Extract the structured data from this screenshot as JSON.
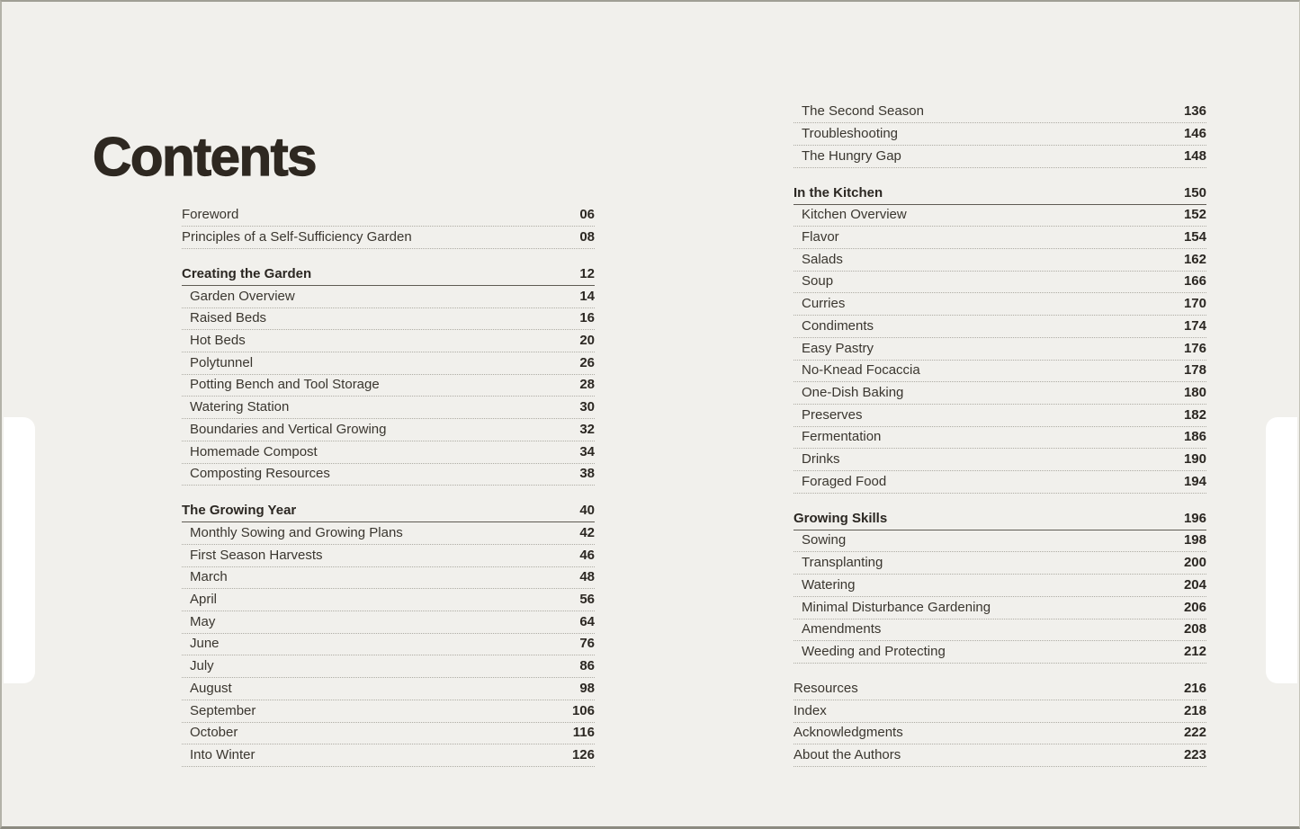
{
  "page": {
    "title": "Contents"
  },
  "colors": {
    "background": "#f1f0ec",
    "text": "#3a362f",
    "text_dark": "#2b2722",
    "rule_light": "#aeaca4",
    "rule_dark": "#5f5b53",
    "frame": "#a09f95",
    "tab": "#ffffff",
    "title": "#2e2821"
  },
  "toc": {
    "left_column": [
      {
        "t": "item",
        "label": "Foreword",
        "page": "06"
      },
      {
        "t": "item",
        "label": "Principles of a Self-Sufficiency Garden",
        "page": "08"
      },
      {
        "t": "section",
        "label": "Creating the Garden",
        "page": "12",
        "gap": true
      },
      {
        "t": "sub",
        "label": "Garden Overview",
        "page": "14"
      },
      {
        "t": "sub",
        "label": "Raised Beds",
        "page": "16"
      },
      {
        "t": "sub",
        "label": "Hot Beds",
        "page": "20"
      },
      {
        "t": "sub",
        "label": "Polytunnel",
        "page": "26"
      },
      {
        "t": "sub",
        "label": "Potting Bench and Tool Storage",
        "page": "28"
      },
      {
        "t": "sub",
        "label": "Watering Station",
        "page": "30"
      },
      {
        "t": "sub",
        "label": "Boundaries and Vertical Growing",
        "page": "32"
      },
      {
        "t": "sub",
        "label": "Homemade Compost",
        "page": "34"
      },
      {
        "t": "sub",
        "label": "Composting Resources",
        "page": "38"
      },
      {
        "t": "section",
        "label": "The Growing Year",
        "page": "40",
        "gap": true
      },
      {
        "t": "sub",
        "label": "Monthly Sowing and Growing Plans",
        "page": "42"
      },
      {
        "t": "sub",
        "label": "First Season Harvests",
        "page": "46"
      },
      {
        "t": "sub",
        "label": "March",
        "page": "48"
      },
      {
        "t": "sub",
        "label": "April",
        "page": "56"
      },
      {
        "t": "sub",
        "label": "May",
        "page": "64"
      },
      {
        "t": "sub",
        "label": "June",
        "page": "76"
      },
      {
        "t": "sub",
        "label": "July",
        "page": "86"
      },
      {
        "t": "sub",
        "label": "August",
        "page": "98"
      },
      {
        "t": "sub",
        "label": "September",
        "page": "106"
      },
      {
        "t": "sub",
        "label": "October",
        "page": "116"
      },
      {
        "t": "sub",
        "label": "Into Winter",
        "page": "126"
      }
    ],
    "right_column": [
      {
        "t": "sub",
        "label": "The Second Season",
        "page": "136"
      },
      {
        "t": "sub",
        "label": "Troubleshooting",
        "page": "146"
      },
      {
        "t": "sub",
        "label": "The Hungry Gap",
        "page": "148"
      },
      {
        "t": "section",
        "label": "In the Kitchen",
        "page": "150",
        "gap": true
      },
      {
        "t": "sub",
        "label": "Kitchen Overview",
        "page": "152"
      },
      {
        "t": "sub",
        "label": "Flavor",
        "page": "154"
      },
      {
        "t": "sub",
        "label": "Salads",
        "page": "162"
      },
      {
        "t": "sub",
        "label": "Soup",
        "page": "166"
      },
      {
        "t": "sub",
        "label": "Curries",
        "page": "170"
      },
      {
        "t": "sub",
        "label": "Condiments",
        "page": "174"
      },
      {
        "t": "sub",
        "label": "Easy Pastry",
        "page": "176"
      },
      {
        "t": "sub",
        "label": "No-Knead Focaccia",
        "page": "178"
      },
      {
        "t": "sub",
        "label": "One-Dish Baking",
        "page": "180"
      },
      {
        "t": "sub",
        "label": "Preserves",
        "page": "182"
      },
      {
        "t": "sub",
        "label": "Fermentation",
        "page": "186"
      },
      {
        "t": "sub",
        "label": "Drinks",
        "page": "190"
      },
      {
        "t": "sub",
        "label": "Foraged Food",
        "page": "194"
      },
      {
        "t": "section",
        "label": "Growing Skills",
        "page": "196",
        "gap": true
      },
      {
        "t": "sub",
        "label": "Sowing",
        "page": "198"
      },
      {
        "t": "sub",
        "label": "Transplanting",
        "page": "200"
      },
      {
        "t": "sub",
        "label": "Watering",
        "page": "204"
      },
      {
        "t": "sub",
        "label": "Minimal Disturbance Gardening",
        "page": "206"
      },
      {
        "t": "sub",
        "label": "Amendments",
        "page": "208"
      },
      {
        "t": "sub",
        "label": "Weeding and Protecting",
        "page": "212"
      },
      {
        "t": "item",
        "label": "Resources",
        "page": "216",
        "gap": true
      },
      {
        "t": "item",
        "label": "Index",
        "page": "218"
      },
      {
        "t": "item",
        "label": "Acknowledgments",
        "page": "222"
      },
      {
        "t": "item",
        "label": "About the Authors",
        "page": "223"
      }
    ]
  }
}
